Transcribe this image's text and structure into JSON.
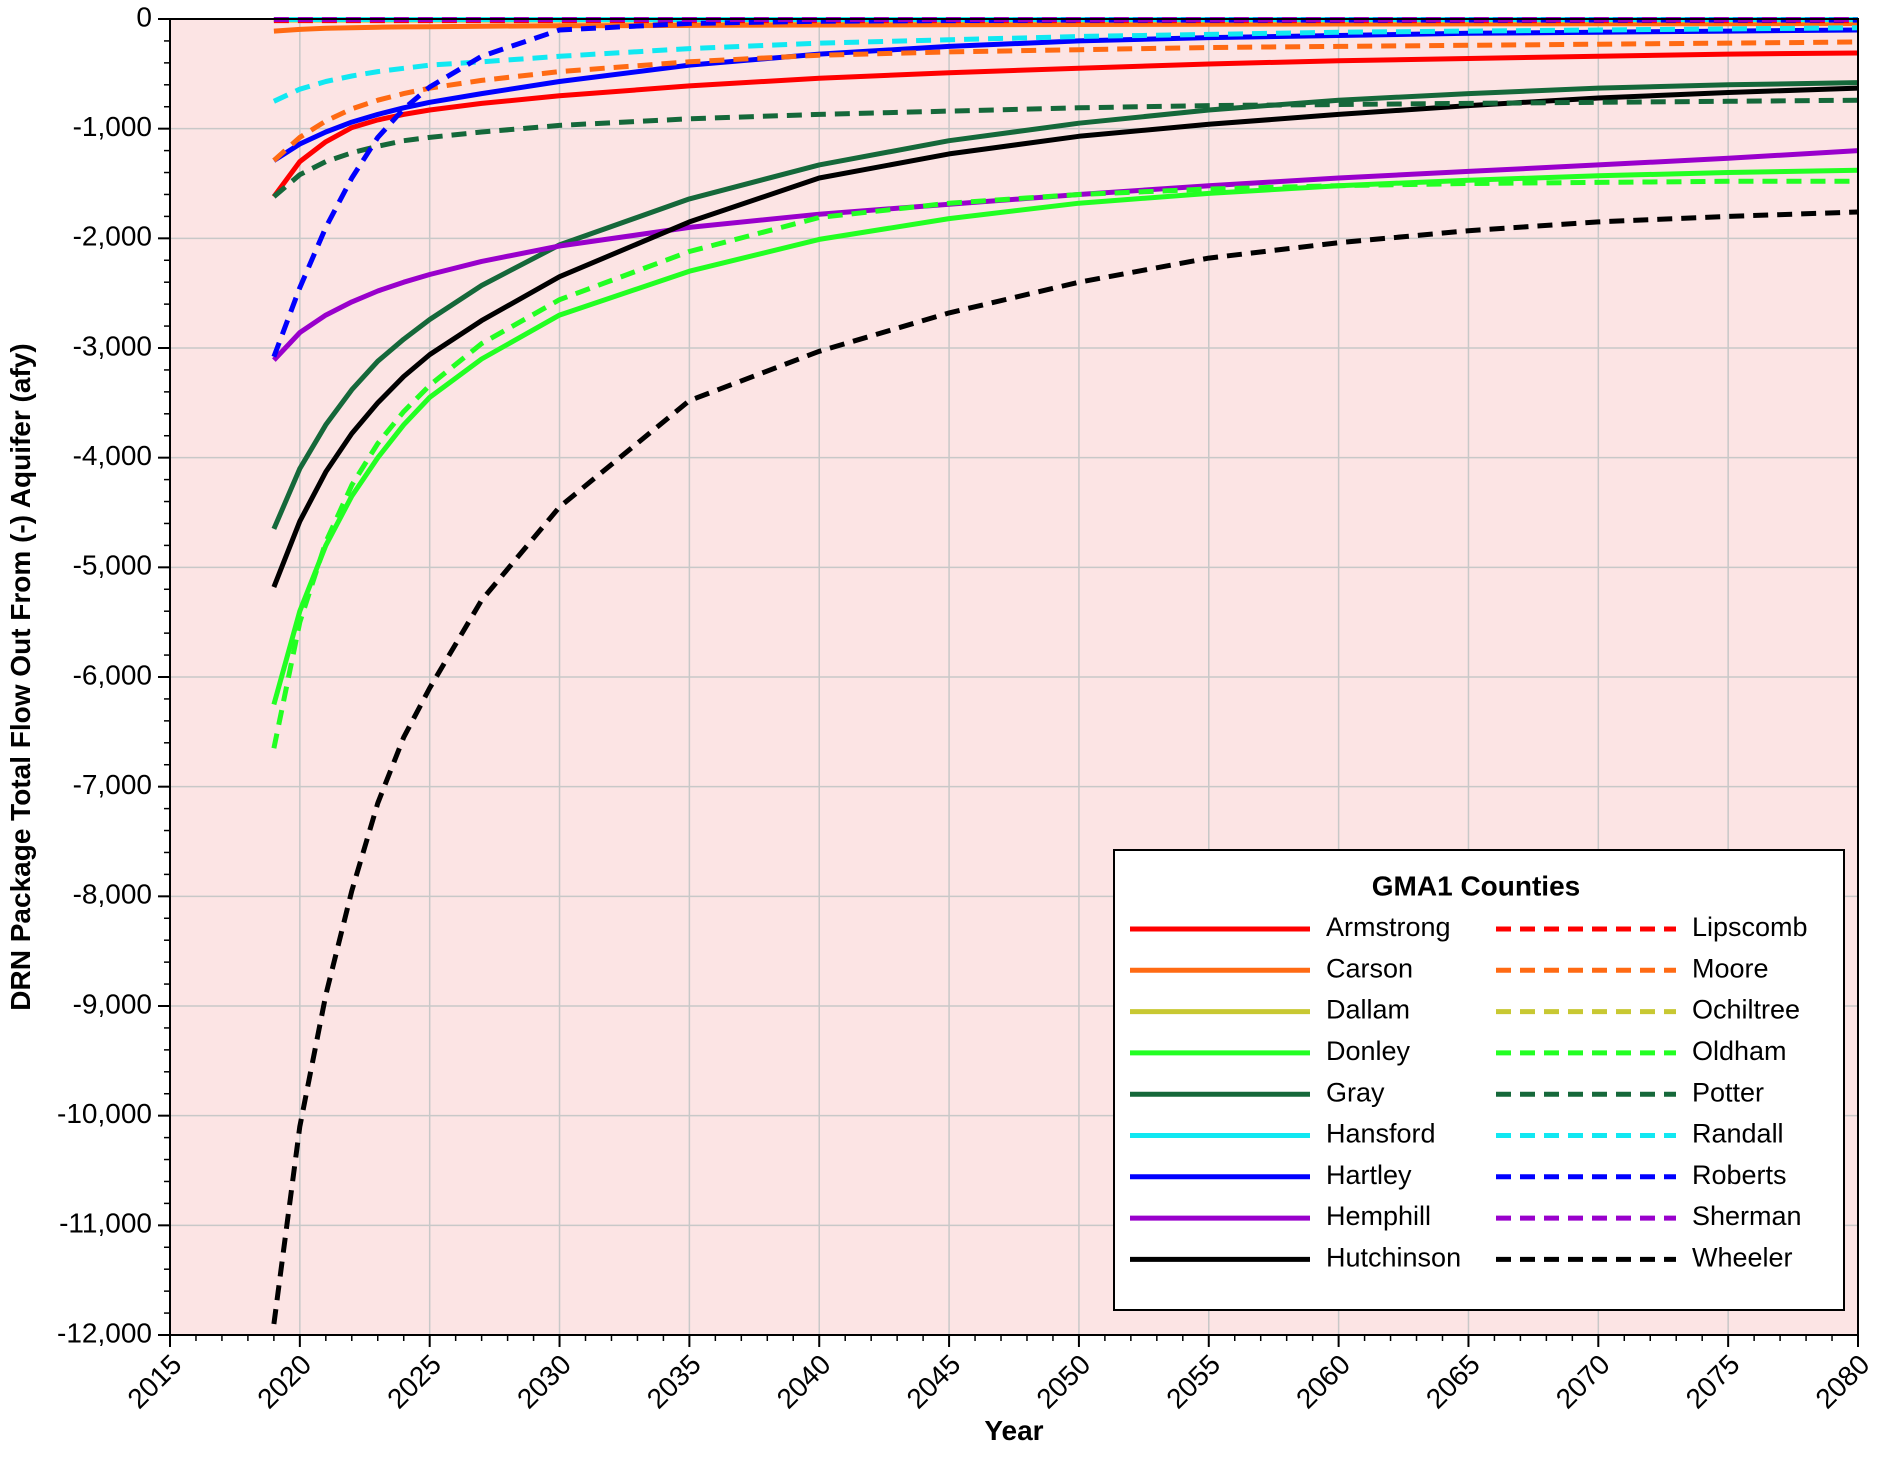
{
  "chart_data": {
    "type": "line",
    "title": "",
    "xlabel": "Year",
    "ylabel": "DRN Package Total Flow Out From (-) Aquifer (afy)",
    "xlim": [
      2015,
      2080
    ],
    "ylim": [
      -12000,
      0
    ],
    "x_ticks": [
      "2015",
      "2020",
      "2025",
      "2030",
      "2035",
      "2040",
      "2045",
      "2050",
      "2055",
      "2060",
      "2065",
      "2070",
      "2075",
      "2080"
    ],
    "y_ticks": [
      "0",
      "-1,000",
      "-2,000",
      "-3,000",
      "-4,000",
      "-5,000",
      "-6,000",
      "-7,000",
      "-8,000",
      "-9,000",
      "-10,000",
      "-11,000",
      "-12,000"
    ],
    "grid": true,
    "plot_background": "#fce4e4",
    "legend": {
      "title": "GMA1 Counties",
      "position": "bottom-right"
    },
    "x": [
      2019,
      2020,
      2021,
      2022,
      2023,
      2024,
      2025,
      2027,
      2030,
      2035,
      2040,
      2045,
      2050,
      2055,
      2060,
      2065,
      2070,
      2075,
      2080
    ],
    "series": [
      {
        "name": "Armstrong",
        "color": "#ff0000",
        "style": "solid",
        "values": [
          -1620,
          -1300,
          -1120,
          -990,
          -920,
          -870,
          -830,
          -770,
          -700,
          -610,
          -540,
          -490,
          -450,
          -410,
          -380,
          -360,
          -340,
          -320,
          -310
        ]
      },
      {
        "name": "Carson",
        "color": "#ff6a13",
        "style": "solid",
        "values": [
          -110,
          -95,
          -85,
          -80,
          -75,
          -72,
          -70,
          -66,
          -62,
          -58,
          -55,
          -52,
          -50,
          -48,
          -46,
          -45,
          -44,
          -43,
          -42
        ]
      },
      {
        "name": "Dallam",
        "color": "#c8c832",
        "style": "solid",
        "values": [
          -10,
          -10,
          -10,
          -10,
          -10,
          -10,
          -10,
          -10,
          -10,
          -10,
          -10,
          -10,
          -10,
          -10,
          -10,
          -10,
          -10,
          -10,
          -10
        ]
      },
      {
        "name": "Donley",
        "color": "#22ff22",
        "style": "solid",
        "values": [
          -6250,
          -5400,
          -4800,
          -4350,
          -4000,
          -3700,
          -3450,
          -3100,
          -2700,
          -2300,
          -2010,
          -1820,
          -1680,
          -1590,
          -1520,
          -1470,
          -1430,
          -1400,
          -1380
        ]
      },
      {
        "name": "Gray",
        "color": "#15683a",
        "style": "solid",
        "values": [
          -4650,
          -4100,
          -3700,
          -3380,
          -3120,
          -2920,
          -2740,
          -2430,
          -2060,
          -1640,
          -1330,
          -1110,
          -950,
          -830,
          -740,
          -680,
          -630,
          -600,
          -580
        ]
      },
      {
        "name": "Hansford",
        "color": "#11e8f2",
        "style": "solid",
        "values": [
          -5,
          -5,
          -5,
          -5,
          -5,
          -5,
          -5,
          -5,
          -5,
          -5,
          -5,
          -5,
          -5,
          -5,
          -5,
          -5,
          -5,
          -5,
          -5
        ]
      },
      {
        "name": "Hartley",
        "color": "#0000ff",
        "style": "solid",
        "values": [
          -1290,
          -1140,
          -1030,
          -940,
          -870,
          -810,
          -760,
          -680,
          -570,
          -420,
          -320,
          -250,
          -200,
          -170,
          -150,
          -130,
          -120,
          -110,
          -100
        ]
      },
      {
        "name": "Hemphill",
        "color": "#9900cc",
        "style": "solid",
        "values": [
          -3110,
          -2860,
          -2700,
          -2580,
          -2480,
          -2400,
          -2330,
          -2210,
          -2070,
          -1900,
          -1780,
          -1690,
          -1600,
          -1520,
          -1450,
          -1390,
          -1330,
          -1270,
          -1200
        ]
      },
      {
        "name": "Hutchinson",
        "color": "#000000",
        "style": "solid",
        "values": [
          -5180,
          -4580,
          -4130,
          -3780,
          -3500,
          -3260,
          -3060,
          -2750,
          -2350,
          -1850,
          -1450,
          -1230,
          -1070,
          -960,
          -870,
          -790,
          -720,
          -670,
          -630
        ]
      },
      {
        "name": "Lipscomb",
        "color": "#ff0000",
        "style": "dashed",
        "values": [
          -15,
          -15,
          -15,
          -15,
          -15,
          -15,
          -15,
          -15,
          -15,
          -15,
          -15,
          -15,
          -15,
          -15,
          -15,
          -15,
          -15,
          -15,
          -15
        ]
      },
      {
        "name": "Moore",
        "color": "#ff6a13",
        "style": "dashed",
        "values": [
          -1290,
          -1080,
          -930,
          -820,
          -740,
          -680,
          -630,
          -560,
          -480,
          -390,
          -330,
          -300,
          -280,
          -260,
          -250,
          -240,
          -230,
          -220,
          -210
        ]
      },
      {
        "name": "Ochiltree",
        "color": "#c8c832",
        "style": "dashed",
        "values": [
          -5,
          -5,
          -5,
          -5,
          -5,
          -5,
          -5,
          -5,
          -5,
          -5,
          -5,
          -5,
          -5,
          -5,
          -5,
          -5,
          -5,
          -5,
          -5
        ]
      },
      {
        "name": "Oldham",
        "color": "#22ff22",
        "style": "dashed",
        "values": [
          -6650,
          -5500,
          -4770,
          -4250,
          -3870,
          -3580,
          -3340,
          -2960,
          -2560,
          -2120,
          -1810,
          -1680,
          -1600,
          -1550,
          -1520,
          -1500,
          -1490,
          -1480,
          -1480
        ]
      },
      {
        "name": "Potter",
        "color": "#15683a",
        "style": "dashed",
        "values": [
          -1620,
          -1420,
          -1300,
          -1220,
          -1160,
          -1110,
          -1080,
          -1030,
          -970,
          -910,
          -870,
          -840,
          -810,
          -790,
          -780,
          -770,
          -760,
          -750,
          -740
        ]
      },
      {
        "name": "Randall",
        "color": "#11e8f2",
        "style": "dashed",
        "values": [
          -750,
          -640,
          -570,
          -520,
          -480,
          -450,
          -420,
          -390,
          -340,
          -270,
          -220,
          -190,
          -160,
          -140,
          -120,
          -110,
          -100,
          -90,
          -80
        ]
      },
      {
        "name": "Roberts",
        "color": "#0000ff",
        "style": "dashed",
        "values": [
          -3080,
          -2450,
          -1900,
          -1450,
          -1080,
          -820,
          -620,
          -340,
          -100,
          -40,
          -20,
          -15,
          -10,
          -10,
          -10,
          -10,
          -10,
          -10,
          -10
        ]
      },
      {
        "name": "Sherman",
        "color": "#9900cc",
        "style": "dashed",
        "values": [
          -5,
          -5,
          -5,
          -5,
          -5,
          -5,
          -5,
          -5,
          -5,
          -5,
          -5,
          -5,
          -5,
          -5,
          -5,
          -5,
          -5,
          -5,
          -5
        ]
      },
      {
        "name": "Wheeler",
        "color": "#000000",
        "style": "dashed",
        "values": [
          -11900,
          -10100,
          -8900,
          -7950,
          -7150,
          -6550,
          -6100,
          -5300,
          -4450,
          -3480,
          -3030,
          -2680,
          -2400,
          -2180,
          -2040,
          -1930,
          -1850,
          -1800,
          -1760
        ]
      }
    ]
  }
}
